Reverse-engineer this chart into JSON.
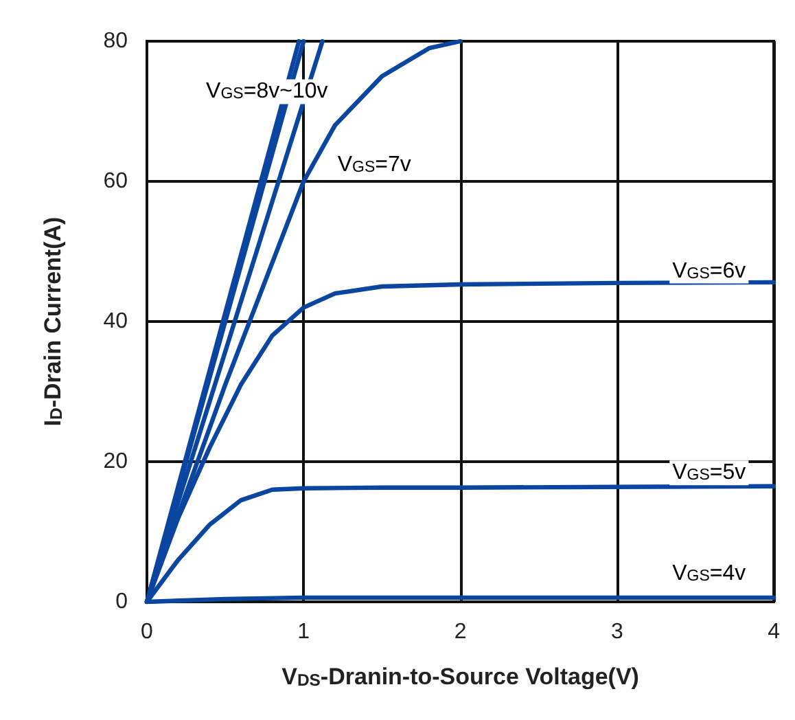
{
  "chart_data": {
    "type": "line",
    "xlabel": "V$_{DS}$-Dranin-to-Source Voltage(V)",
    "ylabel": "I$_{D}$-Drain Current(A)",
    "xlim": [
      0,
      4
    ],
    "xticks": [
      0,
      1,
      2,
      3,
      4
    ],
    "ylim": [
      0,
      80
    ],
    "yticks": [
      0,
      20,
      40,
      60,
      80
    ],
    "grid": true,
    "marker": "none",
    "line_style": "solid",
    "series": [
      {
        "color": "#0a45a0",
        "x": [
          0,
          0.5,
          1,
          2,
          3,
          4
        ],
        "values": [
          0,
          0.4,
          0.6,
          0.6,
          0.6,
          0.6
        ]
      },
      {
        "color": "#0a45a0",
        "x": [
          0,
          0.2,
          0.4,
          0.6,
          0.8,
          1,
          1.5,
          2,
          3,
          4
        ],
        "values": [
          0,
          6,
          11,
          14.5,
          16,
          16.2,
          16.3,
          16.3,
          16.4,
          16.5
        ]
      },
      {
        "color": "#0a45a0",
        "x": [
          0,
          0.2,
          0.4,
          0.6,
          0.8,
          1,
          1.2,
          1.5,
          2,
          3,
          4
        ],
        "values": [
          0,
          12,
          22,
          31,
          38,
          42,
          44,
          45,
          45.3,
          45.5,
          45.6
        ]
      },
      {
        "color": "#0a45a0",
        "x": [
          0,
          0.5,
          1,
          1.2,
          1.5,
          1.8,
          2
        ],
        "values": [
          0,
          31,
          60,
          68,
          75,
          79,
          80
        ]
      },
      {
        "color": "#0a45a0",
        "x": [
          0,
          1.12
        ],
        "values": [
          0,
          80
        ]
      },
      {
        "color": "#0a45a0",
        "x": [
          0,
          1.0
        ],
        "values": [
          0,
          80
        ]
      },
      {
        "color": "#0a45a0",
        "x": [
          0,
          0.97
        ],
        "values": [
          0,
          80
        ]
      }
    ],
    "annotations": [
      "V$_{GS}$=8v~10v",
      "V$_{GS}$=7v",
      "V$_{GS}$=6v",
      "V$_{GS}$=5v",
      "V$_{GS}$=4v"
    ]
  }
}
